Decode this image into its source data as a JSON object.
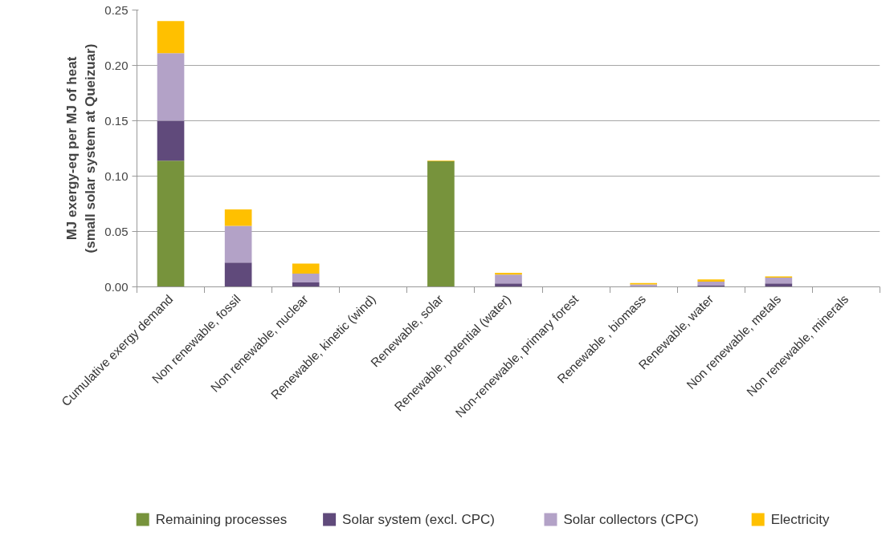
{
  "chart_data": {
    "type": "bar",
    "stacked": true,
    "ylabel": "MJ exergy-eq per MJ of heat (small solar system at Queizuar)",
    "categories": [
      "Cumulative exergy demand",
      "Non renewable, fossil",
      "Non renewable, nuclear",
      "Renewable, kinetic (wind)",
      "Renewable, solar",
      "Renewable, potential (water)",
      "Non-renewable, primary forest",
      "Renewable , biomass",
      "Renewable, water",
      "Non renewable, metals",
      "Non renewable, minerals"
    ],
    "series": [
      {
        "name": "Remaining processes",
        "color": "#77933c",
        "values": [
          0.114,
          0,
          0,
          0,
          0.1135,
          0,
          0,
          0,
          0,
          0,
          0
        ]
      },
      {
        "name": "Solar system (excl. CPC)",
        "color": "#604a7b",
        "values": [
          0.036,
          0.022,
          0.004,
          0,
          0,
          0.003,
          0,
          0.0003,
          0.0014,
          0.003,
          0
        ]
      },
      {
        "name": "Solar collectors (CPC)",
        "color": "#b3a2c7",
        "values": [
          0.061,
          0.033,
          0.008,
          0,
          0,
          0.008,
          0,
          0.0019,
          0.0034,
          0.0053,
          0
        ]
      },
      {
        "name": "Electricity",
        "color": "#ffc000",
        "values": [
          0.029,
          0.015,
          0.009,
          0,
          0.0007,
          0.0017,
          0,
          0.0012,
          0.0019,
          0.0012,
          0
        ]
      }
    ],
    "ylim": [
      0,
      0.25
    ],
    "yticks": [
      {
        "value": 0,
        "label": "0.00"
      },
      {
        "value": 0.05,
        "label": "0.05"
      },
      {
        "value": 0.1,
        "label": "0.10"
      },
      {
        "value": 0.15,
        "label": "0.15"
      },
      {
        "value": 0.2,
        "label": "0.20"
      },
      {
        "value": 0.25,
        "label": "0.25"
      }
    ],
    "grid": "y",
    "legend": "bottom"
  }
}
